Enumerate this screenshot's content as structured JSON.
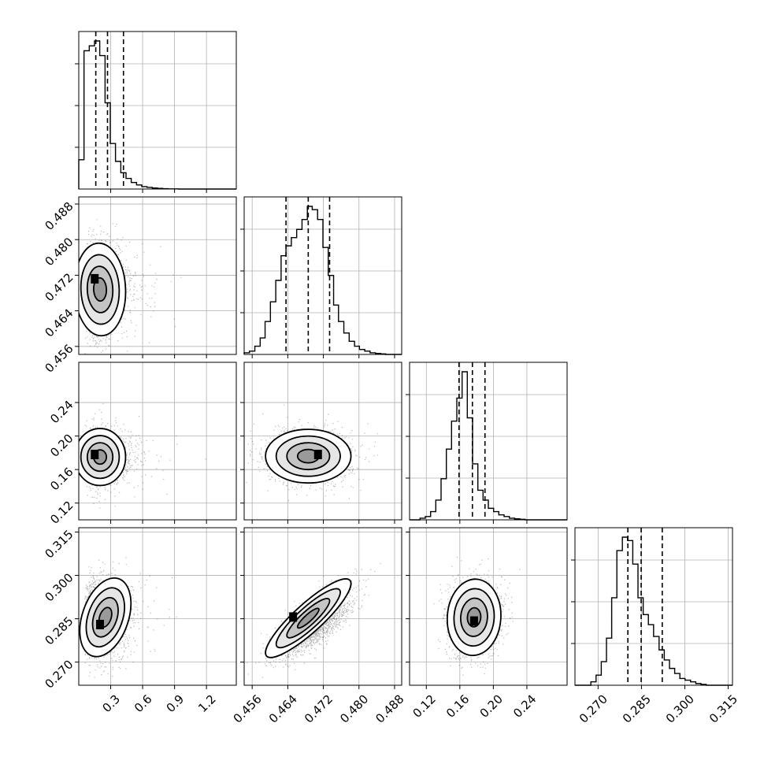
{
  "chart_data": {
    "type": "corner",
    "n_parameters": 4,
    "grid": true,
    "parameters": [
      {
        "label": "",
        "ticks": [
          0.3,
          0.6,
          0.9,
          1.2
        ],
        "tick_labels": [
          "0.3",
          "0.6",
          "0.9",
          "1.2"
        ],
        "range": [
          0.0,
          1.48
        ],
        "quantiles": [
          0.16,
          0.27,
          0.42
        ]
      },
      {
        "label": "",
        "ticks": [
          0.456,
          0.464,
          0.472,
          0.48,
          0.488
        ],
        "tick_labels": [
          "0.456",
          "0.464",
          "0.472",
          "0.480",
          "0.488"
        ],
        "range": [
          0.4542,
          0.4896
        ],
        "quantiles": [
          0.4636,
          0.4686,
          0.4734
        ]
      },
      {
        "label": "",
        "ticks": [
          0.12,
          0.16,
          0.2,
          0.24
        ],
        "tick_labels": [
          "0.12",
          "0.16",
          "0.20",
          "0.24"
        ],
        "range": [
          0.1,
          0.288
        ],
        "quantiles": [
          0.159,
          0.175,
          0.19
        ]
      },
      {
        "label": "",
        "ticks": [
          0.27,
          0.285,
          0.3,
          0.315
        ],
        "tick_labels": [
          "0.270",
          "0.285",
          "0.300",
          "0.315"
        ],
        "range": [
          0.262,
          0.3165
        ],
        "quantiles": [
          0.2803,
          0.2849,
          0.2922
        ]
      }
    ],
    "histograms": [
      {
        "parameter": 0,
        "bin_edges": [
          0.0,
          0.0493,
          0.0987,
          0.148,
          0.197,
          0.247,
          0.296,
          0.345,
          0.395,
          0.444,
          0.493,
          0.543,
          0.592,
          0.641,
          0.691,
          0.74,
          0.789,
          0.839,
          0.888,
          0.937,
          0.987,
          1.036,
          1.085,
          1.135,
          1.184,
          1.233,
          1.283,
          1.332,
          1.381,
          1.431,
          1.48
        ],
        "counts": [
          0.18,
          0.85,
          0.88,
          0.91,
          0.82,
          0.53,
          0.28,
          0.17,
          0.1,
          0.065,
          0.04,
          0.025,
          0.015,
          0.01,
          0.006,
          0.004,
          0.002,
          0.001,
          0.001,
          0.0,
          0.0,
          0.0,
          0.0,
          0.0,
          0.0,
          0.0,
          0.0,
          0.0,
          0.0,
          0.0
        ]
      },
      {
        "parameter": 1,
        "bin_edges": [
          0.4542,
          0.4554,
          0.4566,
          0.4578,
          0.4589,
          0.4601,
          0.4613,
          0.4625,
          0.4636,
          0.4648,
          0.466,
          0.4672,
          0.4684,
          0.4695,
          0.4707,
          0.4719,
          0.4731,
          0.4743,
          0.4754,
          0.4766,
          0.4778,
          0.479,
          0.4801,
          0.4813,
          0.4825,
          0.4837,
          0.4849,
          0.486,
          0.4872,
          0.4884,
          0.4896
        ],
        "counts": [
          0.01,
          0.02,
          0.05,
          0.1,
          0.2,
          0.32,
          0.45,
          0.6,
          0.66,
          0.71,
          0.76,
          0.82,
          0.9,
          0.88,
          0.82,
          0.65,
          0.48,
          0.3,
          0.2,
          0.13,
          0.08,
          0.05,
          0.03,
          0.02,
          0.01,
          0.006,
          0.003,
          0.0,
          0.0,
          0.0
        ]
      },
      {
        "parameter": 2,
        "bin_edges": [
          0.1,
          0.1063,
          0.1125,
          0.1188,
          0.1251,
          0.1313,
          0.1376,
          0.1439,
          0.1501,
          0.1564,
          0.1627,
          0.1689,
          0.1752,
          0.1815,
          0.1877,
          0.194,
          0.2003,
          0.2065,
          0.2128,
          0.2191,
          0.2253,
          0.2316,
          0.2379,
          0.2441,
          0.2504,
          0.2567,
          0.2629,
          0.2692,
          0.2755,
          0.2817,
          0.288
        ],
        "counts": [
          0.0,
          0.0,
          0.01,
          0.02,
          0.05,
          0.12,
          0.25,
          0.43,
          0.6,
          0.74,
          0.9,
          0.62,
          0.34,
          0.18,
          0.12,
          0.07,
          0.05,
          0.03,
          0.02,
          0.01,
          0.006,
          0.003,
          0.0,
          0.0,
          0.0,
          0.0,
          0.0,
          0.0,
          0.0,
          0.0
        ]
      },
      {
        "parameter": 3,
        "bin_edges": [
          0.262,
          0.2638,
          0.2656,
          0.2675,
          0.2693,
          0.2711,
          0.2729,
          0.2747,
          0.2765,
          0.2784,
          0.2802,
          0.282,
          0.2838,
          0.2856,
          0.2874,
          0.2892,
          0.2911,
          0.2929,
          0.2947,
          0.2965,
          0.2983,
          0.3001,
          0.302,
          0.3038,
          0.3056,
          0.3074,
          0.3092,
          0.311,
          0.3128,
          0.3147,
          0.3165
        ],
        "counts": [
          0.0,
          0.0,
          0.0,
          0.02,
          0.06,
          0.14,
          0.28,
          0.52,
          0.8,
          0.88,
          0.86,
          0.72,
          0.52,
          0.42,
          0.36,
          0.29,
          0.21,
          0.15,
          0.1,
          0.07,
          0.04,
          0.03,
          0.02,
          0.01,
          0.005,
          0.0,
          0.0,
          0.0,
          0.0,
          0.0
        ]
      }
    ],
    "pairs": [
      {
        "x_param": 0,
        "y_param": 1,
        "mean": [
          0.28,
          0.4688
        ],
        "std": [
          0.16,
          0.0052
        ],
        "rho": -0.05,
        "peak": [
          0.15,
          0.4712
        ]
      },
      {
        "x_param": 0,
        "y_param": 2,
        "mean": [
          0.24,
          0.175
        ],
        "std": [
          0.15,
          0.017
        ],
        "rho": 0.0,
        "peak": [
          0.15,
          0.178
        ]
      },
      {
        "x_param": 1,
        "y_param": 2,
        "mean": [
          0.4686,
          0.176
        ],
        "std": [
          0.0048,
          0.016
        ],
        "rho": 0.0,
        "peak": [
          0.4708,
          0.178
        ]
      },
      {
        "x_param": 0,
        "y_param": 3,
        "mean": [
          0.28,
          0.2855
        ],
        "std": [
          0.16,
          0.0068
        ],
        "rho": 0.35,
        "peak": [
          0.2,
          0.283
        ]
      },
      {
        "x_param": 1,
        "y_param": 3,
        "mean": [
          0.4686,
          0.2852
        ],
        "std": [
          0.0048,
          0.0068
        ],
        "rho": 0.88,
        "peak": [
          0.4652,
          0.2856
        ],
        "split": true
      },
      {
        "x_param": 2,
        "y_param": 3,
        "mean": [
          0.177,
          0.2855
        ],
        "std": [
          0.016,
          0.0066
        ],
        "rho": 0.05,
        "peak": [
          0.177,
          0.2842
        ]
      }
    ],
    "contour_sigmas": [
      0.5,
      1.0,
      1.5,
      2.0
    ]
  }
}
